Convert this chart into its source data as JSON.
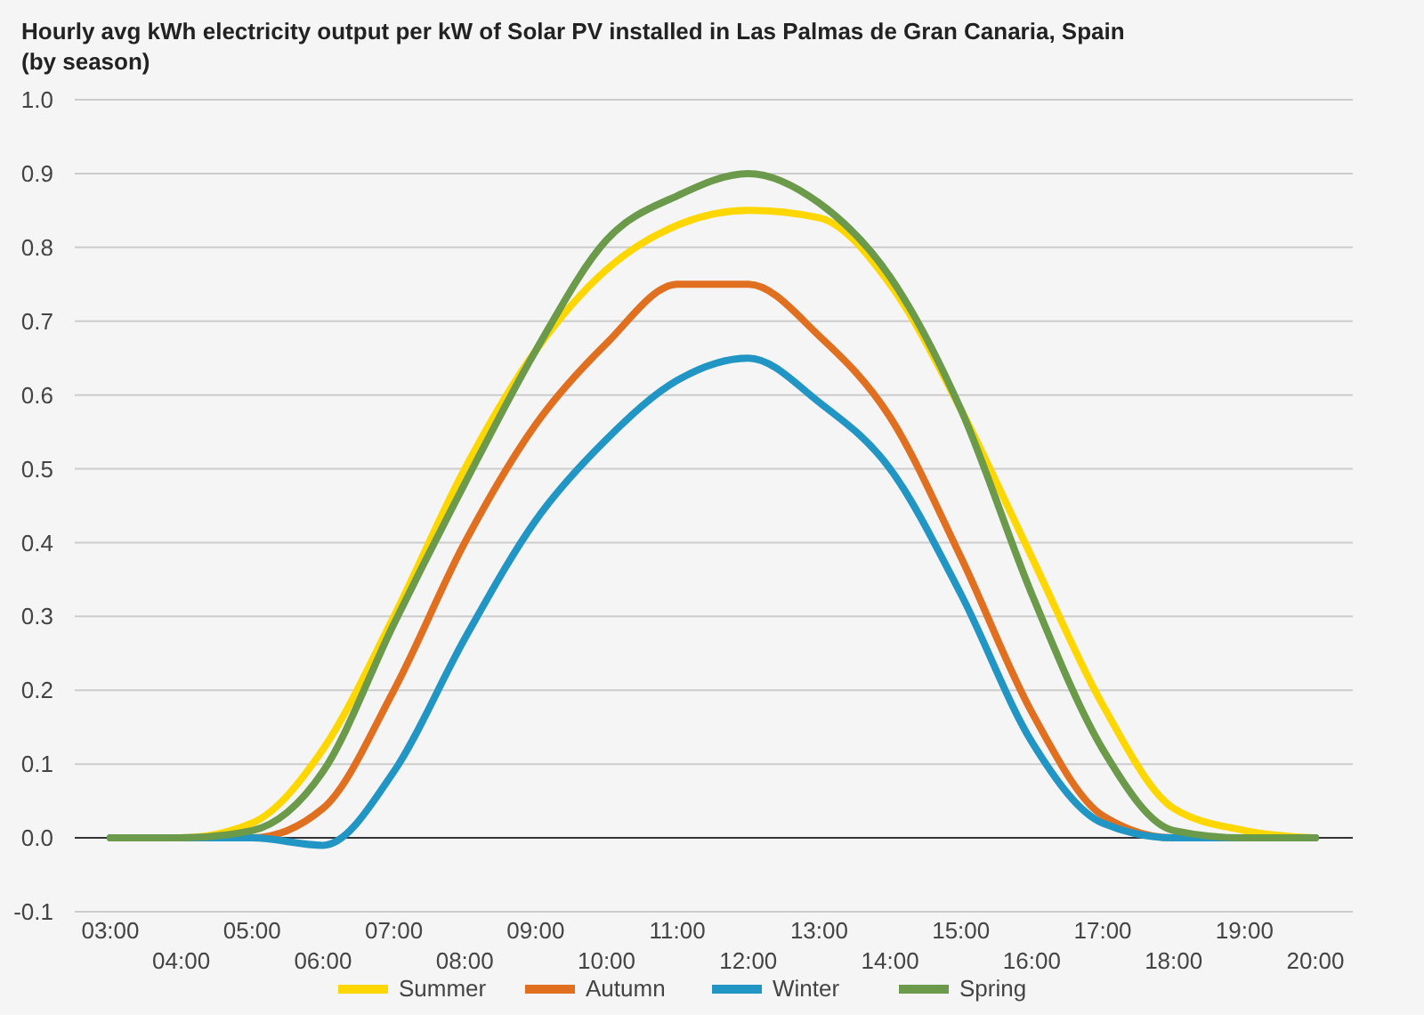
{
  "chart_data": {
    "type": "line",
    "title": "Hourly avg kWh electricity output per kW of Solar PV installed in Las Palmas de Gran Canaria, Spain (by season)",
    "categories": [
      "03:00",
      "04:00",
      "05:00",
      "06:00",
      "07:00",
      "08:00",
      "09:00",
      "10:00",
      "11:00",
      "12:00",
      "13:00",
      "14:00",
      "15:00",
      "16:00",
      "17:00",
      "18:00",
      "19:00",
      "20:00"
    ],
    "series": [
      {
        "name": "Summer",
        "color": "#ffd700",
        "values": [
          0,
          0,
          0.02,
          0.12,
          0.3,
          0.5,
          0.66,
          0.77,
          0.83,
          0.85,
          0.84,
          0.75,
          0.58,
          0.38,
          0.18,
          0.04,
          0.01,
          0
        ]
      },
      {
        "name": "Autumn",
        "color": "#e07020",
        "values": [
          0,
          0,
          0,
          0.04,
          0.2,
          0.4,
          0.56,
          0.67,
          0.75,
          0.75,
          0.68,
          0.57,
          0.38,
          0.17,
          0.03,
          0,
          0,
          0
        ]
      },
      {
        "name": "Winter",
        "color": "#2196c4",
        "values": [
          0,
          0,
          0,
          -0.01,
          0.09,
          0.27,
          0.43,
          0.54,
          0.62,
          0.65,
          0.59,
          0.5,
          0.33,
          0.13,
          0.02,
          0,
          0,
          0
        ]
      },
      {
        "name": "Spring",
        "color": "#6a9a4a",
        "values": [
          0,
          0,
          0.01,
          0.09,
          0.29,
          0.48,
          0.66,
          0.81,
          0.87,
          0.9,
          0.86,
          0.76,
          0.58,
          0.33,
          0.12,
          0.01,
          0,
          0
        ]
      }
    ],
    "ylim": [
      -0.1,
      1.0
    ],
    "yticks": [
      {
        "value": -0.1,
        "label": "-0.1"
      },
      {
        "value": 0,
        "label": "0.0"
      },
      {
        "value": 0.1,
        "label": "0.1"
      },
      {
        "value": 0.2,
        "label": "0.2"
      },
      {
        "value": 0.3,
        "label": "0.3"
      },
      {
        "value": 0.4,
        "label": "0.4"
      },
      {
        "value": 0.5,
        "label": "0.5"
      },
      {
        "value": 0.6,
        "label": "0.6"
      },
      {
        "value": 0.7,
        "label": "0.7"
      },
      {
        "value": 0.8,
        "label": "0.8"
      },
      {
        "value": 0.9,
        "label": "0.9"
      },
      {
        "value": 1.0,
        "label": "1.0"
      }
    ],
    "grid": "y",
    "legend": "bottom",
    "marker": "none",
    "line_style": "solid"
  }
}
